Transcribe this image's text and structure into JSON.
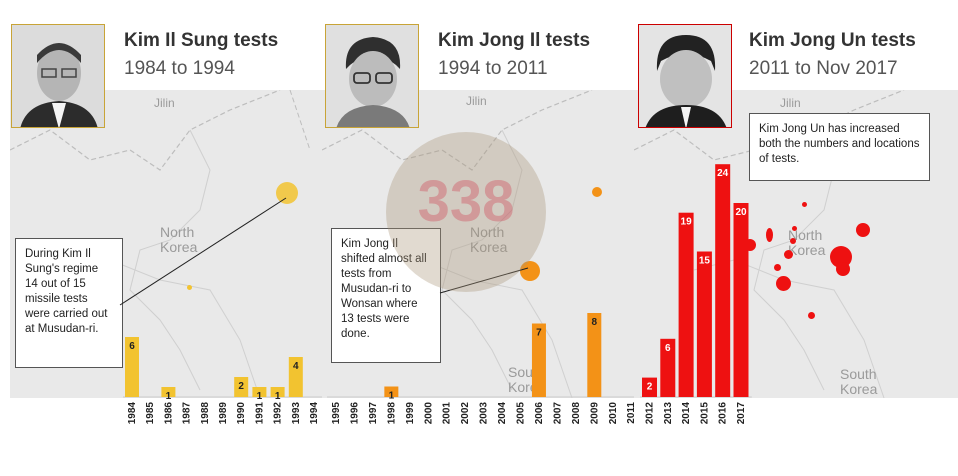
{
  "panels": [
    {
      "title": "Kim Il Sung tests",
      "subtitle": "1984 to 1994",
      "color": "#f2c330",
      "portrait_border": "#c8a437",
      "note": "During Kim Il Sung's regime 14 out of 15 missile tests were carried out at Musudan-ri.",
      "map_labels": {
        "jilin": "Jilin",
        "north_korea": "North\nKorea"
      }
    },
    {
      "title": "Kim Jong Il tests",
      "subtitle": "1994 to 2011",
      "color": "#f39217",
      "portrait_border": "#c8a437",
      "note": "Kim Jong Il shifted almost all tests from Musudan-ri to Wonsan where 13 tests were done.",
      "map_labels": {
        "jilin": "Jilin",
        "north_korea": "North\nKorea",
        "south_korea": "South\nKorea"
      },
      "watermark": "338"
    },
    {
      "title": "Kim Jong Un tests",
      "subtitle": "2011 to Nov 2017",
      "color": "#ee1111",
      "portrait_border": "#cc0000",
      "note": "Kim Jong Un has increased both the numbers and locations of tests.",
      "map_labels": {
        "jilin": "Jilin",
        "north_korea": "North\nKorea",
        "south_korea": "South\nKorea"
      }
    }
  ],
  "chart_data": [
    {
      "type": "bar",
      "title": "Kim Il Sung tests",
      "subtitle": "1984 to 1994",
      "categories": [
        "1984",
        "1985",
        "1986",
        "1987",
        "1988",
        "1989",
        "1990",
        "1991",
        "1992",
        "1993",
        "1994"
      ],
      "values": [
        6,
        0,
        1,
        0,
        0,
        0,
        2,
        1,
        1,
        4,
        0
      ],
      "color": "#f2c330"
    },
    {
      "type": "bar",
      "title": "Kim Jong Il tests",
      "subtitle": "1994 to 2011",
      "categories": [
        "1995",
        "1996",
        "1997",
        "1998",
        "1999",
        "2000",
        "2001",
        "2002",
        "2003",
        "2004",
        "2005",
        "2006",
        "2007",
        "2008",
        "2009",
        "2010",
        "2011"
      ],
      "values": [
        0,
        0,
        0,
        1,
        0,
        0,
        0,
        0,
        0,
        0,
        0,
        7,
        0,
        0,
        8,
        0,
        0
      ],
      "color": "#f39217"
    },
    {
      "type": "bar",
      "title": "Kim Jong Un tests",
      "subtitle": "2011 to Nov 2017",
      "categories": [
        "2012",
        "2013",
        "2014",
        "2015",
        "2016",
        "2017"
      ],
      "values": [
        2,
        6,
        19,
        15,
        24,
        20
      ],
      "color": "#ee1111"
    }
  ]
}
